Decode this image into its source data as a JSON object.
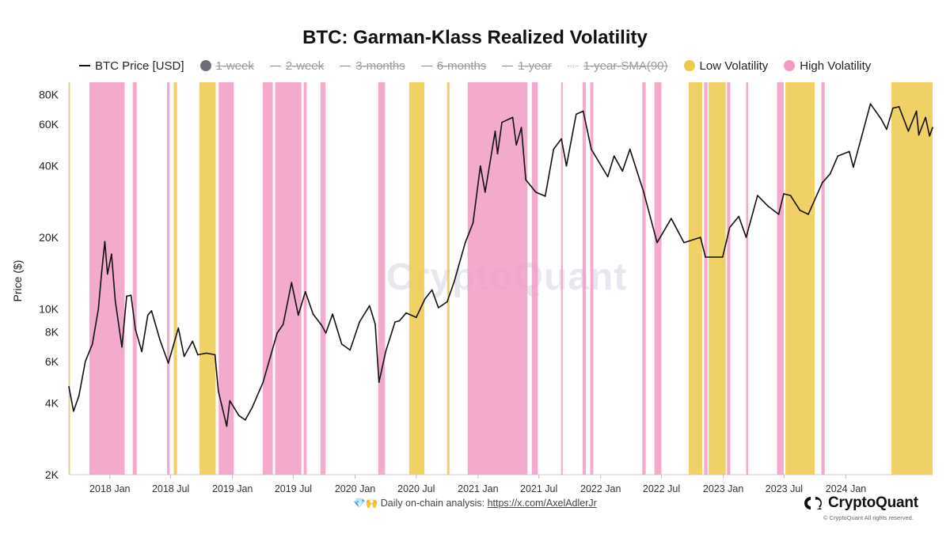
{
  "chart_data": {
    "type": "line",
    "title": "BTC: Garman-Klass Realized Volatility",
    "ylabel": "Price ($)",
    "y_scale": "log",
    "ylim": [
      2000,
      90000
    ],
    "y_ticks": [
      {
        "value": 2000,
        "label": "2K"
      },
      {
        "value": 4000,
        "label": "4K"
      },
      {
        "value": 6000,
        "label": "6K"
      },
      {
        "value": 8000,
        "label": "8K"
      },
      {
        "value": 10000,
        "label": "10K"
      },
      {
        "value": 20000,
        "label": "20K"
      },
      {
        "value": 40000,
        "label": "40K"
      },
      {
        "value": 60000,
        "label": "60K"
      },
      {
        "value": 80000,
        "label": "80K"
      }
    ],
    "xlim": [
      "2017-09-01",
      "2024-09-15"
    ],
    "x_ticks": [
      {
        "date": "2018-01-01",
        "label": "2018 Jan"
      },
      {
        "date": "2018-07-01",
        "label": "2018 Jul"
      },
      {
        "date": "2019-01-01",
        "label": "2019 Jan"
      },
      {
        "date": "2019-07-01",
        "label": "2019 Jul"
      },
      {
        "date": "2020-01-01",
        "label": "2020 Jan"
      },
      {
        "date": "2020-07-01",
        "label": "2020 Jul"
      },
      {
        "date": "2021-01-01",
        "label": "2021 Jan"
      },
      {
        "date": "2021-07-01",
        "label": "2021 Jul"
      },
      {
        "date": "2022-01-01",
        "label": "2022 Jan"
      },
      {
        "date": "2022-07-01",
        "label": "2022 Jul"
      },
      {
        "date": "2023-01-01",
        "label": "2023 Jan"
      },
      {
        "date": "2023-07-01",
        "label": "2023 Jul"
      },
      {
        "date": "2024-01-01",
        "label": "2024 Jan"
      }
    ],
    "legend": [
      {
        "label": "BTC Price [USD]",
        "swatch": "line",
        "active": true
      },
      {
        "label": "1-week",
        "swatch": "dot-grey",
        "active": false
      },
      {
        "label": "2-week",
        "swatch": "line-grey",
        "active": false
      },
      {
        "label": "3-months",
        "swatch": "line-grey",
        "active": false
      },
      {
        "label": "6-months",
        "swatch": "line-grey",
        "active": false
      },
      {
        "label": "1-year",
        "swatch": "line-grey",
        "active": false
      },
      {
        "label": "1-year-SMA(90)",
        "swatch": "dotted",
        "active": false
      },
      {
        "label": "Low Volatility",
        "swatch": "dot-yellow",
        "active": true
      },
      {
        "label": "High Volatility",
        "swatch": "dot-pink",
        "active": true
      }
    ],
    "colors": {
      "price": "#111111",
      "low_vol": "#ecc94b",
      "high_vol": "#f09cc4",
      "grid": "#e6e6e6",
      "grey_swatch": "#6f6c78"
    },
    "series": [
      {
        "name": "BTC Price [USD]",
        "points": [
          [
            "2017-09-01",
            4700
          ],
          [
            "2017-09-15",
            3700
          ],
          [
            "2017-10-01",
            4300
          ],
          [
            "2017-10-20",
            6000
          ],
          [
            "2017-11-10",
            7100
          ],
          [
            "2017-11-28",
            10000
          ],
          [
            "2017-12-07",
            14000
          ],
          [
            "2017-12-17",
            19200
          ],
          [
            "2017-12-25",
            14000
          ],
          [
            "2018-01-06",
            17000
          ],
          [
            "2018-01-17",
            10800
          ],
          [
            "2018-02-06",
            6900
          ],
          [
            "2018-02-20",
            11300
          ],
          [
            "2018-03-05",
            11400
          ],
          [
            "2018-03-18",
            8200
          ],
          [
            "2018-04-06",
            6600
          ],
          [
            "2018-04-24",
            9400
          ],
          [
            "2018-05-05",
            9800
          ],
          [
            "2018-05-30",
            7400
          ],
          [
            "2018-06-24",
            5900
          ],
          [
            "2018-07-24",
            8300
          ],
          [
            "2018-08-10",
            6300
          ],
          [
            "2018-09-04",
            7300
          ],
          [
            "2018-09-20",
            6400
          ],
          [
            "2018-10-15",
            6500
          ],
          [
            "2018-11-10",
            6400
          ],
          [
            "2018-11-20",
            4500
          ],
          [
            "2018-12-15",
            3200
          ],
          [
            "2018-12-24",
            4100
          ],
          [
            "2019-01-20",
            3550
          ],
          [
            "2019-02-08",
            3400
          ],
          [
            "2019-03-01",
            3850
          ],
          [
            "2019-04-02",
            4900
          ],
          [
            "2019-05-14",
            7900
          ],
          [
            "2019-06-01",
            8600
          ],
          [
            "2019-06-26",
            12900
          ],
          [
            "2019-07-16",
            9400
          ],
          [
            "2019-08-06",
            11800
          ],
          [
            "2019-08-29",
            9500
          ],
          [
            "2019-09-24",
            8500
          ],
          [
            "2019-10-06",
            7900
          ],
          [
            "2019-10-26",
            9500
          ],
          [
            "2019-11-22",
            7100
          ],
          [
            "2019-12-17",
            6700
          ],
          [
            "2020-01-14",
            8800
          ],
          [
            "2020-02-13",
            10300
          ],
          [
            "2020-03-01",
            8600
          ],
          [
            "2020-03-12",
            4900
          ],
          [
            "2020-04-01",
            6600
          ],
          [
            "2020-04-29",
            8800
          ],
          [
            "2020-05-12",
            8900
          ],
          [
            "2020-06-01",
            9600
          ],
          [
            "2020-07-01",
            9200
          ],
          [
            "2020-07-27",
            11000
          ],
          [
            "2020-08-17",
            12000
          ],
          [
            "2020-09-05",
            10100
          ],
          [
            "2020-10-01",
            10700
          ],
          [
            "2020-10-22",
            13000
          ],
          [
            "2020-11-24",
            19000
          ],
          [
            "2020-12-17",
            23000
          ],
          [
            "2021-01-08",
            40000
          ],
          [
            "2021-01-22",
            31000
          ],
          [
            "2021-02-21",
            56000
          ],
          [
            "2021-02-28",
            45000
          ],
          [
            "2021-03-13",
            61000
          ],
          [
            "2021-04-14",
            64000
          ],
          [
            "2021-04-25",
            49000
          ],
          [
            "2021-05-10",
            58000
          ],
          [
            "2021-05-23",
            35000
          ],
          [
            "2021-06-22",
            31000
          ],
          [
            "2021-07-20",
            29800
          ],
          [
            "2021-08-14",
            47000
          ],
          [
            "2021-09-06",
            52000
          ],
          [
            "2021-09-21",
            40000
          ],
          [
            "2021-10-20",
            66000
          ],
          [
            "2021-11-10",
            68000
          ],
          [
            "2021-12-04",
            47000
          ],
          [
            "2022-01-22",
            36000
          ],
          [
            "2022-02-10",
            44000
          ],
          [
            "2022-03-07",
            38000
          ],
          [
            "2022-03-29",
            47000
          ],
          [
            "2022-05-09",
            31000
          ],
          [
            "2022-06-18",
            19000
          ],
          [
            "2022-07-30",
            24000
          ],
          [
            "2022-09-06",
            19000
          ],
          [
            "2022-10-25",
            20000
          ],
          [
            "2022-11-09",
            16500
          ],
          [
            "2022-12-30",
            16500
          ],
          [
            "2023-01-20",
            22000
          ],
          [
            "2023-02-16",
            24500
          ],
          [
            "2023-03-10",
            20000
          ],
          [
            "2023-04-13",
            30000
          ],
          [
            "2023-05-15",
            27000
          ],
          [
            "2023-06-15",
            25000
          ],
          [
            "2023-06-30",
            30500
          ],
          [
            "2023-07-20",
            30000
          ],
          [
            "2023-08-17",
            26000
          ],
          [
            "2023-09-11",
            25000
          ],
          [
            "2023-10-23",
            34000
          ],
          [
            "2023-11-15",
            37000
          ],
          [
            "2023-12-08",
            44000
          ],
          [
            "2024-01-11",
            46000
          ],
          [
            "2024-01-23",
            39500
          ],
          [
            "2024-02-15",
            52000
          ],
          [
            "2024-03-14",
            73000
          ],
          [
            "2024-04-15",
            63000
          ],
          [
            "2024-05-01",
            57000
          ],
          [
            "2024-05-20",
            70000
          ],
          [
            "2024-06-07",
            71000
          ],
          [
            "2024-07-05",
            56000
          ],
          [
            "2024-07-29",
            68000
          ],
          [
            "2024-08-05",
            54000
          ],
          [
            "2024-08-25",
            64000
          ],
          [
            "2024-09-06",
            53500
          ],
          [
            "2024-09-15",
            58000
          ]
        ]
      }
    ],
    "high_volatility_ranges": [
      [
        "2017-11-01",
        "2018-02-14"
      ],
      [
        "2018-03-10",
        "2018-03-22"
      ],
      [
        "2018-06-20",
        "2018-06-28"
      ],
      [
        "2018-11-21",
        "2019-01-05"
      ],
      [
        "2019-04-01",
        "2019-05-01"
      ],
      [
        "2019-05-08",
        "2019-07-25"
      ],
      [
        "2019-08-01",
        "2019-08-10"
      ],
      [
        "2019-09-20",
        "2019-10-05"
      ],
      [
        "2020-03-10",
        "2020-03-30"
      ],
      [
        "2020-12-01",
        "2021-05-28"
      ],
      [
        "2021-06-10",
        "2021-06-28"
      ],
      [
        "2021-09-05",
        "2021-09-10"
      ],
      [
        "2021-11-08",
        "2021-11-18"
      ],
      [
        "2021-12-01",
        "2021-12-10"
      ],
      [
        "2022-05-05",
        "2022-05-15"
      ],
      [
        "2022-06-10",
        "2022-07-01"
      ],
      [
        "2022-11-05",
        "2022-11-15"
      ],
      [
        "2023-01-12",
        "2023-01-22"
      ],
      [
        "2023-03-10",
        "2023-03-16"
      ],
      [
        "2023-06-10",
        "2023-06-30"
      ],
      [
        "2023-10-20",
        "2023-10-30"
      ]
    ],
    "low_volatility_ranges": [
      [
        "2017-09-01",
        "2017-09-03"
      ],
      [
        "2018-07-10",
        "2018-07-20"
      ],
      [
        "2018-09-25",
        "2018-11-12"
      ],
      [
        "2020-06-10",
        "2020-07-25"
      ],
      [
        "2020-10-01",
        "2020-10-08"
      ],
      [
        "2022-09-20",
        "2022-10-30"
      ],
      [
        "2022-11-18",
        "2023-01-08"
      ],
      [
        "2023-07-05",
        "2023-09-30"
      ],
      [
        "2024-05-15",
        "2024-09-15"
      ]
    ]
  },
  "watermark": "CryptoQuant",
  "footer": {
    "emoji": "💎🙌",
    "text": "Daily on-chain analysis:",
    "link_text": "https://x.com/AxelAdlerJr",
    "brand": "CryptoQuant",
    "copyright": "© CryptoQuant All rights reserved."
  }
}
